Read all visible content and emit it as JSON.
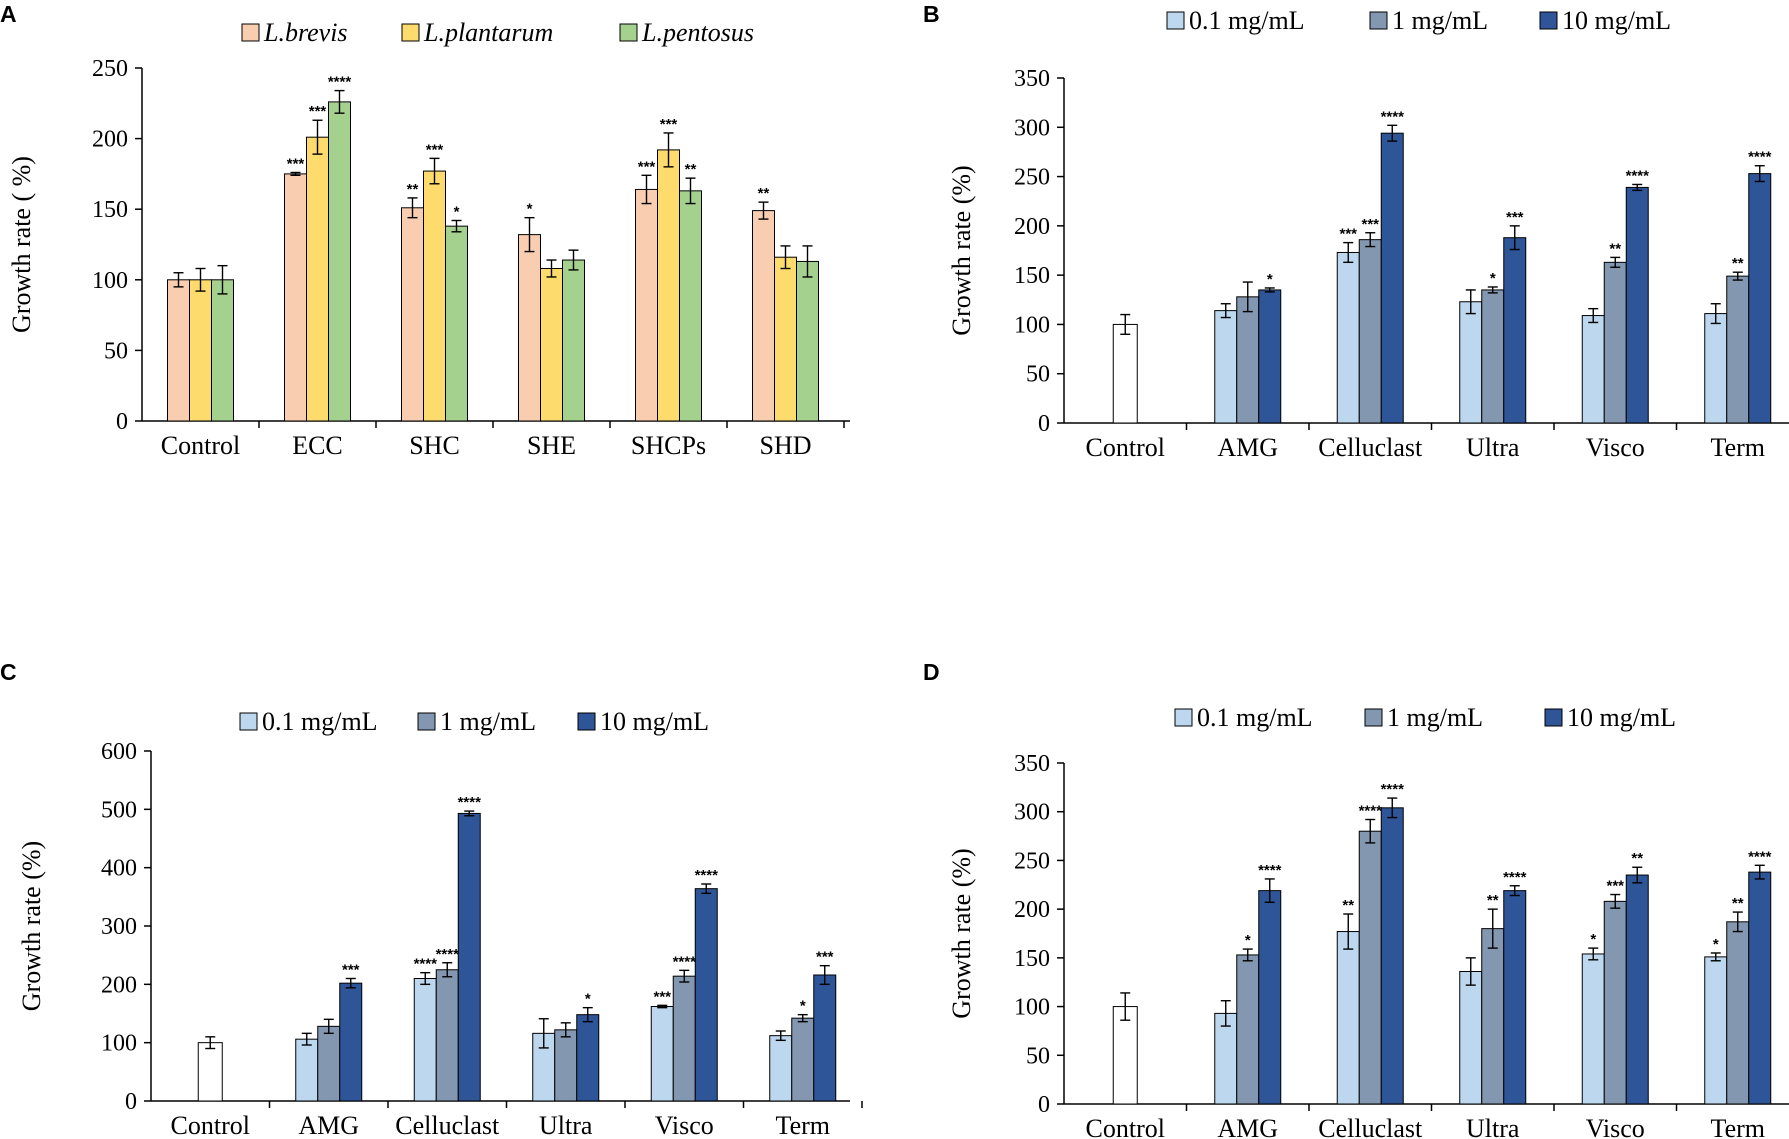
{
  "chart_data": [
    {
      "panel": "A",
      "type": "bar",
      "title": "",
      "xlabel": "",
      "ylabel": "Growth rate ( %)",
      "ylim": [
        0,
        250
      ],
      "yticks": [
        0,
        50,
        100,
        150,
        200,
        250
      ],
      "categories": [
        "Control",
        "ECC",
        "SHC",
        "SHE",
        "SHCPs",
        "SHD"
      ],
      "legend_position": "top-center",
      "series": [
        {
          "name": "L.brevis",
          "color": "#f8cdb0",
          "values": [
            100,
            175,
            151,
            132,
            164,
            149
          ],
          "errors": [
            5,
            1,
            7,
            12,
            10,
            6
          ],
          "sig": [
            "",
            "***",
            "**",
            "*",
            "***",
            "**"
          ]
        },
        {
          "name": "L.plantarum",
          "color": "#fddb6c",
          "values": [
            100,
            201,
            177,
            108,
            192,
            116
          ],
          "errors": [
            8,
            12,
            9,
            6,
            12,
            8
          ],
          "sig": [
            "",
            "***",
            "***",
            "",
            "***",
            ""
          ]
        },
        {
          "name": "L.pentosus",
          "color": "#a5d18f",
          "values": [
            100,
            226,
            138,
            114,
            163,
            113
          ],
          "errors": [
            10,
            8,
            4,
            7,
            9,
            11
          ],
          "sig": [
            "",
            "****",
            "*",
            "",
            "**",
            ""
          ]
        }
      ]
    },
    {
      "panel": "B",
      "type": "bar",
      "title": "",
      "xlabel": "",
      "ylabel": "Growth rate (%)",
      "ylim": [
        0,
        350
      ],
      "yticks": [
        0,
        50,
        100,
        150,
        200,
        250,
        300,
        350
      ],
      "categories": [
        "Control",
        "AMG",
        "Celluclast",
        "Ultra",
        "Visco",
        "Term"
      ],
      "legend_position": "top-center",
      "control": {
        "value": 100,
        "error": 10,
        "color": "#ffffff"
      },
      "series": [
        {
          "name": "0.1 mg/mL",
          "color": "#bcd7ee",
          "values": [
            null,
            114,
            173,
            123,
            109,
            111
          ],
          "errors": [
            null,
            7,
            10,
            12,
            7,
            10
          ],
          "sig": [
            "",
            "",
            "***",
            "",
            "",
            ""
          ]
        },
        {
          "name": "1 mg/mL",
          "color": "#8497b0",
          "values": [
            null,
            128,
            186,
            135,
            163,
            149
          ],
          "errors": [
            null,
            15,
            7,
            3,
            5,
            4
          ],
          "sig": [
            "",
            "",
            "***",
            "*",
            "**",
            "**"
          ]
        },
        {
          "name": "10 mg/mL",
          "color": "#2e5597",
          "values": [
            null,
            135,
            294,
            188,
            239,
            253
          ],
          "errors": [
            null,
            2,
            8,
            12,
            3,
            8
          ],
          "sig": [
            "",
            "*",
            "****",
            "***",
            "****",
            "****"
          ]
        }
      ]
    },
    {
      "panel": "C",
      "type": "bar",
      "title": "",
      "xlabel": "",
      "ylabel": "Growth rate (%)",
      "ylim": [
        0,
        600
      ],
      "yticks": [
        0,
        100,
        200,
        300,
        400,
        500,
        600
      ],
      "categories": [
        "Control",
        "AMG",
        "Celluclast",
        "Ultra",
        "Visco",
        "Term"
      ],
      "legend_position": "top-center",
      "control": {
        "value": 100,
        "error": 10,
        "color": "#ffffff"
      },
      "series": [
        {
          "name": "0.1 mg/mL",
          "color": "#bcd7ee",
          "values": [
            null,
            106,
            210,
            116,
            162,
            112
          ],
          "errors": [
            null,
            10,
            10,
            25,
            2,
            8
          ],
          "sig": [
            "",
            "",
            "****",
            "",
            "***",
            ""
          ]
        },
        {
          "name": "1 mg/mL",
          "color": "#8497b0",
          "values": [
            null,
            128,
            225,
            122,
            214,
            142
          ],
          "errors": [
            null,
            12,
            12,
            12,
            10,
            6
          ],
          "sig": [
            "",
            "",
            "****",
            "",
            "****",
            "*"
          ]
        },
        {
          "name": "10 mg/mL",
          "color": "#2e5597",
          "values": [
            null,
            202,
            493,
            148,
            364,
            216
          ],
          "errors": [
            null,
            8,
            4,
            12,
            8,
            16
          ],
          "sig": [
            "",
            "***",
            "****",
            "*",
            "****",
            "***"
          ]
        }
      ]
    },
    {
      "panel": "D",
      "type": "bar",
      "title": "",
      "xlabel": "",
      "ylabel": "Growth rate (%)",
      "ylim": [
        0,
        350
      ],
      "yticks": [
        0,
        50,
        100,
        150,
        200,
        250,
        300,
        350
      ],
      "categories": [
        "Control",
        "AMG",
        "Celluclast",
        "Ultra",
        "Visco",
        "Term"
      ],
      "legend_position": "top-center",
      "control": {
        "value": 100,
        "error": 14,
        "color": "#ffffff"
      },
      "series": [
        {
          "name": "0.1 mg/mL",
          "color": "#bcd7ee",
          "values": [
            null,
            93,
            177,
            136,
            154,
            151
          ],
          "errors": [
            null,
            13,
            18,
            14,
            6,
            4
          ],
          "sig": [
            "",
            "",
            "**",
            "",
            "*",
            "*"
          ]
        },
        {
          "name": "1 mg/mL",
          "color": "#8497b0",
          "values": [
            null,
            153,
            280,
            180,
            208,
            187
          ],
          "errors": [
            null,
            6,
            12,
            20,
            7,
            10
          ],
          "sig": [
            "",
            "*",
            "****",
            "**",
            "***",
            "**"
          ]
        },
        {
          "name": "10 mg/mL",
          "color": "#2e5597",
          "values": [
            null,
            219,
            304,
            219,
            235,
            238
          ],
          "errors": [
            null,
            12,
            10,
            5,
            8,
            7
          ],
          "sig": [
            "",
            "****",
            "****",
            "****",
            "**",
            "****"
          ]
        }
      ]
    }
  ]
}
